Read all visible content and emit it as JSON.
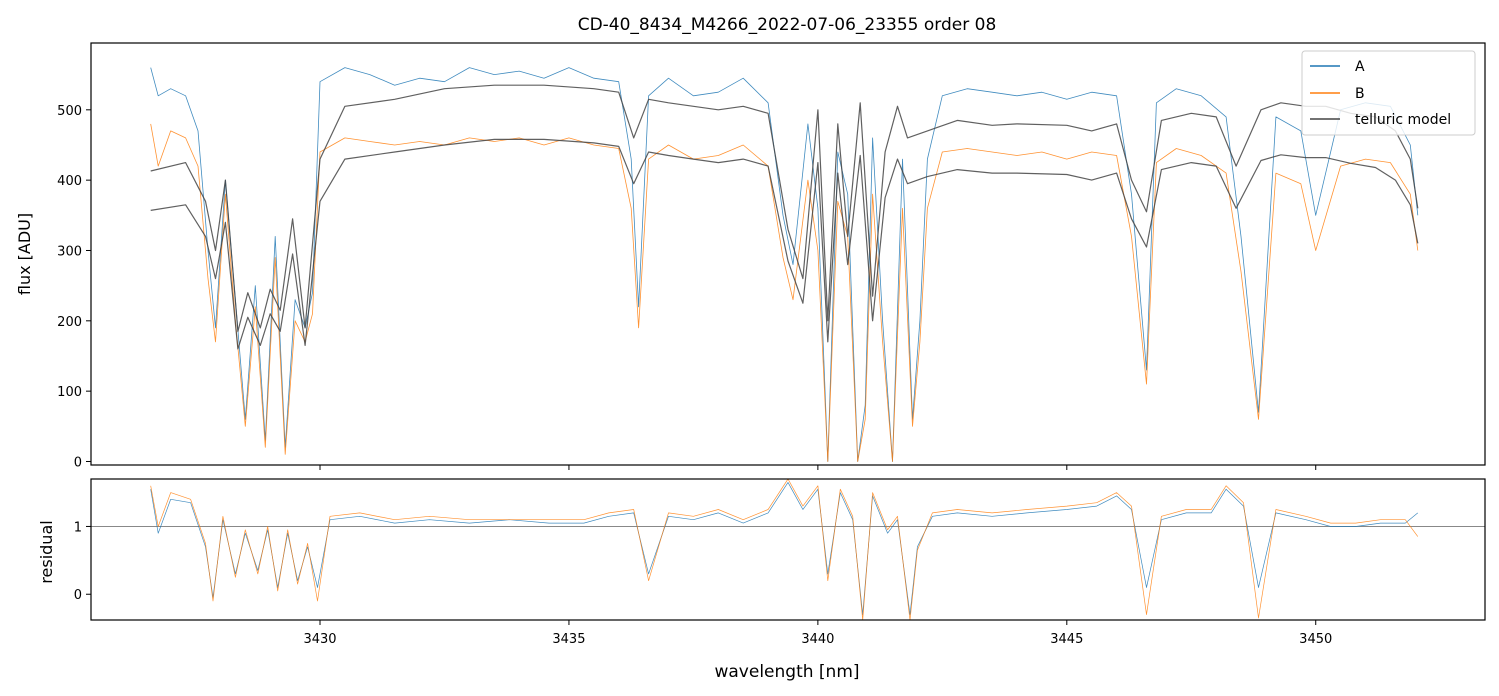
{
  "chart_data": [
    {
      "type": "line",
      "title": "CD-40_8434_M4266_2022-07-06_23355  order 08",
      "ylabel": "flux [ADU]",
      "xlim": [
        3425.4,
        3453.4
      ],
      "ylim": [
        -5,
        595
      ],
      "yticks": [
        0,
        100,
        200,
        300,
        400,
        500
      ],
      "legend": {
        "position": "top-right",
        "entries": [
          {
            "label": "A",
            "color": "#1f77b4"
          },
          {
            "label": "B",
            "color": "#ff7f0e"
          },
          {
            "label": "telluric model",
            "color": "#444444"
          }
        ]
      },
      "series": [
        {
          "name": "A",
          "color": "#1f77b4",
          "x": [
            3426.6,
            3426.75,
            3427.0,
            3427.3,
            3427.55,
            3427.75,
            3427.9,
            3428.1,
            3428.3,
            3428.5,
            3428.7,
            3428.9,
            3429.1,
            3429.3,
            3429.5,
            3429.7,
            3429.85,
            3430.0,
            3430.5,
            3431.0,
            3431.5,
            3432.0,
            3432.5,
            3433.0,
            3433.5,
            3434.0,
            3434.5,
            3435.0,
            3435.5,
            3436.0,
            3436.25,
            3436.4,
            3436.6,
            3437.0,
            3437.5,
            3438.0,
            3438.5,
            3439.0,
            3439.3,
            3439.5,
            3439.8,
            3440.0,
            3440.2,
            3440.4,
            3440.6,
            3440.8,
            3440.95,
            3441.1,
            3441.3,
            3441.5,
            3441.7,
            3441.9,
            3442.05,
            3442.2,
            3442.5,
            3443.0,
            3443.5,
            3444.0,
            3444.5,
            3445.0,
            3445.5,
            3446.0,
            3446.3,
            3446.6,
            3446.8,
            3447.2,
            3447.7,
            3448.2,
            3448.5,
            3448.85,
            3449.2,
            3449.7,
            3450.0,
            3450.5,
            3451.0,
            3451.5,
            3451.9,
            3452.05
          ],
          "y": [
            560,
            520,
            530,
            520,
            470,
            300,
            190,
            400,
            230,
            60,
            250,
            30,
            320,
            20,
            230,
            190,
            240,
            540,
            560,
            550,
            535,
            545,
            540,
            560,
            550,
            555,
            545,
            560,
            545,
            540,
            430,
            220,
            520,
            545,
            520,
            525,
            545,
            510,
            350,
            280,
            480,
            360,
            0,
            440,
            380,
            0,
            80,
            460,
            200,
            0,
            430,
            60,
            200,
            430,
            520,
            530,
            525,
            520,
            525,
            515,
            525,
            520,
            380,
            130,
            510,
            530,
            520,
            490,
            320,
            70,
            490,
            470,
            350,
            500,
            510,
            505,
            450,
            350
          ]
        },
        {
          "name": "B",
          "color": "#ff7f0e",
          "x": [
            3426.6,
            3426.75,
            3427.0,
            3427.3,
            3427.55,
            3427.75,
            3427.9,
            3428.1,
            3428.3,
            3428.5,
            3428.7,
            3428.9,
            3429.1,
            3429.3,
            3429.5,
            3429.7,
            3429.85,
            3430.0,
            3430.5,
            3431.0,
            3431.5,
            3432.0,
            3432.5,
            3433.0,
            3433.5,
            3434.0,
            3434.5,
            3435.0,
            3435.5,
            3436.0,
            3436.25,
            3436.4,
            3436.6,
            3437.0,
            3437.5,
            3438.0,
            3438.5,
            3439.0,
            3439.3,
            3439.5,
            3439.8,
            3440.0,
            3440.2,
            3440.4,
            3440.6,
            3440.8,
            3440.95,
            3441.1,
            3441.3,
            3441.5,
            3441.7,
            3441.9,
            3442.05,
            3442.2,
            3442.5,
            3443.0,
            3443.5,
            3444.0,
            3444.5,
            3445.0,
            3445.5,
            3446.0,
            3446.3,
            3446.6,
            3446.8,
            3447.2,
            3447.7,
            3448.2,
            3448.5,
            3448.85,
            3449.2,
            3449.7,
            3450.0,
            3450.5,
            3451.0,
            3451.5,
            3451.9,
            3452.05
          ],
          "y": [
            480,
            420,
            470,
            460,
            420,
            260,
            170,
            380,
            200,
            50,
            220,
            20,
            290,
            10,
            200,
            170,
            210,
            440,
            460,
            455,
            450,
            455,
            450,
            460,
            455,
            460,
            450,
            460,
            450,
            445,
            360,
            190,
            430,
            450,
            430,
            435,
            450,
            420,
            290,
            230,
            400,
            300,
            0,
            370,
            320,
            0,
            60,
            380,
            170,
            0,
            360,
            50,
            170,
            360,
            440,
            445,
            440,
            435,
            440,
            430,
            440,
            435,
            320,
            110,
            425,
            445,
            435,
            410,
            270,
            60,
            410,
            395,
            300,
            420,
            430,
            425,
            380,
            300
          ]
        },
        {
          "name": "telluric model",
          "color": "#444444",
          "x": [
            3426.6,
            3427.3,
            3427.7,
            3427.9,
            3428.1,
            3428.35,
            3428.55,
            3428.8,
            3429.0,
            3429.2,
            3429.45,
            3429.7,
            3430.0,
            3430.5,
            3431.5,
            3432.5,
            3433.5,
            3434.5,
            3435.5,
            3436.0,
            3436.3,
            3436.6,
            3437.0,
            3437.5,
            3438.0,
            3438.5,
            3439.0,
            3439.4,
            3439.7,
            3440.0,
            3440.2,
            3440.4,
            3440.6,
            3440.85,
            3441.1,
            3441.35,
            3441.6,
            3441.8,
            3442.2,
            3442.8,
            3443.5,
            3444.0,
            3445.0,
            3445.5,
            3446.0,
            3446.3,
            3446.6,
            3446.9,
            3447.5,
            3448.0,
            3448.4,
            3448.9,
            3449.3,
            3449.8,
            3450.2,
            3450.7,
            3451.2,
            3451.6,
            3451.9,
            3452.05
          ],
          "y": [
            413,
            425,
            370,
            300,
            400,
            185,
            240,
            190,
            245,
            215,
            345,
            190,
            430,
            505,
            515,
            530,
            535,
            535,
            530,
            525,
            460,
            515,
            510,
            505,
            500,
            505,
            495,
            330,
            260,
            500,
            200,
            480,
            320,
            510,
            235,
            440,
            505,
            460,
            470,
            485,
            478,
            480,
            478,
            470,
            480,
            400,
            355,
            485,
            495,
            490,
            420,
            500,
            510,
            505,
            505,
            495,
            490,
            470,
            430,
            360
          ]
        },
        {
          "name": "telluric model",
          "color": "#444444",
          "x": [
            3426.6,
            3427.3,
            3427.7,
            3427.9,
            3428.1,
            3428.35,
            3428.55,
            3428.8,
            3429.0,
            3429.2,
            3429.45,
            3429.7,
            3430.0,
            3430.5,
            3431.5,
            3432.5,
            3433.5,
            3434.5,
            3435.5,
            3436.0,
            3436.3,
            3436.6,
            3437.0,
            3437.5,
            3438.0,
            3438.5,
            3439.0,
            3439.4,
            3439.7,
            3440.0,
            3440.2,
            3440.4,
            3440.6,
            3440.85,
            3441.1,
            3441.35,
            3441.6,
            3441.8,
            3442.2,
            3442.8,
            3443.5,
            3444.0,
            3445.0,
            3445.5,
            3446.0,
            3446.3,
            3446.6,
            3446.9,
            3447.5,
            3448.0,
            3448.4,
            3448.9,
            3449.3,
            3449.8,
            3450.2,
            3450.7,
            3451.2,
            3451.6,
            3451.9,
            3452.05
          ],
          "y": [
            357,
            365,
            320,
            260,
            340,
            160,
            205,
            165,
            210,
            185,
            295,
            165,
            370,
            430,
            440,
            450,
            458,
            458,
            453,
            448,
            395,
            440,
            435,
            430,
            425,
            430,
            420,
            285,
            225,
            425,
            170,
            410,
            280,
            435,
            200,
            375,
            430,
            395,
            405,
            415,
            410,
            410,
            408,
            400,
            410,
            345,
            305,
            415,
            425,
            420,
            360,
            428,
            436,
            432,
            432,
            424,
            418,
            400,
            365,
            310
          ]
        }
      ]
    },
    {
      "type": "line",
      "xlabel": "wavelength [nm]",
      "ylabel": "residual",
      "xlim": [
        3425.4,
        3453.4
      ],
      "ylim": [
        -0.38,
        1.7
      ],
      "yticks": [
        0,
        1
      ],
      "xticks": [
        3430,
        3435,
        3440,
        3445,
        3450
      ],
      "reference_line": 1,
      "series": [
        {
          "name": "A",
          "color": "#1f77b4",
          "x": [
            3426.6,
            3426.75,
            3427.0,
            3427.4,
            3427.7,
            3427.85,
            3428.05,
            3428.3,
            3428.5,
            3428.75,
            3428.95,
            3429.15,
            3429.35,
            3429.55,
            3429.75,
            3429.95,
            3430.2,
            3430.8,
            3431.5,
            3432.2,
            3433.0,
            3433.8,
            3434.6,
            3435.3,
            3435.8,
            3436.3,
            3436.6,
            3437.0,
            3437.5,
            3438.0,
            3438.5,
            3439.0,
            3439.4,
            3439.7,
            3440.0,
            3440.2,
            3440.45,
            3440.7,
            3440.9,
            3441.1,
            3441.4,
            3441.6,
            3441.85,
            3442.0,
            3442.3,
            3442.8,
            3443.5,
            3444.2,
            3445.0,
            3445.6,
            3446.0,
            3446.3,
            3446.6,
            3446.9,
            3447.4,
            3447.9,
            3448.2,
            3448.55,
            3448.85,
            3449.2,
            3449.8,
            3450.3,
            3450.8,
            3451.3,
            3451.8,
            3452.05
          ],
          "y": [
            1.55,
            0.9,
            1.4,
            1.35,
            0.7,
            -0.05,
            1.1,
            0.3,
            0.9,
            0.35,
            0.95,
            0.1,
            0.9,
            0.2,
            0.7,
            0.1,
            1.1,
            1.15,
            1.05,
            1.1,
            1.05,
            1.1,
            1.05,
            1.05,
            1.15,
            1.2,
            0.3,
            1.15,
            1.1,
            1.2,
            1.05,
            1.2,
            1.65,
            1.25,
            1.55,
            0.3,
            1.5,
            1.1,
            -0.3,
            1.45,
            0.9,
            1.1,
            -0.3,
            0.7,
            1.15,
            1.2,
            1.15,
            1.2,
            1.25,
            1.3,
            1.45,
            1.25,
            0.1,
            1.1,
            1.2,
            1.2,
            1.55,
            1.3,
            0.1,
            1.2,
            1.1,
            1.0,
            1.0,
            1.05,
            1.05,
            1.2
          ]
        },
        {
          "name": "B",
          "color": "#ff7f0e",
          "x": [
            3426.6,
            3426.75,
            3427.0,
            3427.4,
            3427.7,
            3427.85,
            3428.05,
            3428.3,
            3428.5,
            3428.75,
            3428.95,
            3429.15,
            3429.35,
            3429.55,
            3429.75,
            3429.95,
            3430.2,
            3430.8,
            3431.5,
            3432.2,
            3433.0,
            3433.8,
            3434.6,
            3435.3,
            3435.8,
            3436.3,
            3436.6,
            3437.0,
            3437.5,
            3438.0,
            3438.5,
            3439.0,
            3439.4,
            3439.7,
            3440.0,
            3440.2,
            3440.45,
            3440.7,
            3440.9,
            3441.1,
            3441.4,
            3441.6,
            3441.85,
            3442.0,
            3442.3,
            3442.8,
            3443.5,
            3444.2,
            3445.0,
            3445.6,
            3446.0,
            3446.3,
            3446.6,
            3446.9,
            3447.4,
            3447.9,
            3448.2,
            3448.55,
            3448.85,
            3449.2,
            3449.8,
            3450.3,
            3450.8,
            3451.3,
            3451.8,
            3452.05
          ],
          "y": [
            1.6,
            1.0,
            1.5,
            1.4,
            0.75,
            -0.1,
            1.15,
            0.25,
            0.95,
            0.3,
            1.0,
            0.05,
            0.95,
            0.15,
            0.75,
            -0.1,
            1.15,
            1.2,
            1.1,
            1.15,
            1.1,
            1.1,
            1.1,
            1.1,
            1.2,
            1.25,
            0.2,
            1.2,
            1.15,
            1.25,
            1.1,
            1.25,
            1.7,
            1.3,
            1.6,
            0.2,
            1.55,
            1.15,
            -0.38,
            1.5,
            0.95,
            1.15,
            -0.38,
            0.65,
            1.2,
            1.25,
            1.2,
            1.25,
            1.3,
            1.35,
            1.5,
            1.3,
            -0.3,
            1.15,
            1.25,
            1.25,
            1.6,
            1.35,
            -0.35,
            1.25,
            1.15,
            1.05,
            1.05,
            1.1,
            1.1,
            0.85
          ]
        }
      ]
    }
  ]
}
